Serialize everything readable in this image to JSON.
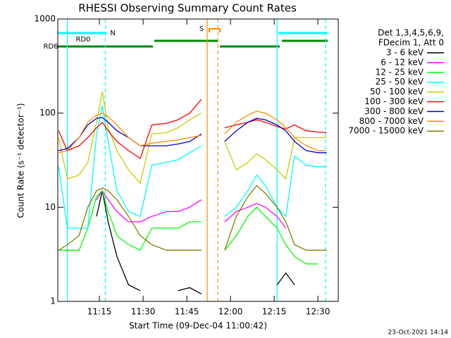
{
  "chart_data": {
    "type": "line",
    "title": "RHESSI Observing Summary Count Rates",
    "x_label": "Start Time (09-Dec-04 11:00:42)",
    "y_label": "Count Rate (s⁻¹ detector⁻¹)",
    "legend_header": [
      "Det 1,3,4,5,6,9,",
      "FDecim 1, Att 0"
    ],
    "timestamp": "23-Oct-2021 14:14",
    "log_y": true,
    "xlim": [
      "11:00:42",
      "12:37:00"
    ],
    "xticks": [
      "11:15",
      "11:30",
      "11:45",
      "12:00",
      "12:15",
      "12:30"
    ],
    "ylim": [
      1,
      1000
    ],
    "yticks": [
      1,
      10,
      100,
      1000
    ],
    "x": [
      "11:01",
      "11:04",
      "11:08",
      "11:11",
      "11:14",
      "11:16",
      "11:18",
      "11:21",
      "11:25",
      "11:29",
      "11:33",
      "11:38",
      "11:42",
      "11:46",
      "11:50",
      "11:54",
      "11:58",
      "12:02",
      "12:06",
      "12:09",
      "12:12",
      "12:16",
      "12:19",
      "12:22",
      "12:26",
      "12:30",
      "12:33"
    ],
    "series": [
      {
        "name": "3 - 6 keV",
        "color": "#000000",
        "values": [
          null,
          null,
          null,
          null,
          8,
          15,
          7,
          3,
          1.5,
          1.3,
          null,
          null,
          1.3,
          1.4,
          1.2,
          null,
          null,
          null,
          null,
          null,
          null,
          1.5,
          2,
          1.5,
          null,
          null,
          null
        ]
      },
      {
        "name": "6 - 12 keV",
        "color": "#ff00ff",
        "values": [
          null,
          null,
          null,
          null,
          12,
          15,
          12,
          9,
          7,
          7,
          8,
          9,
          9,
          10,
          12,
          null,
          7,
          9,
          10,
          11,
          10,
          8,
          6,
          null,
          null,
          null,
          null
        ]
      },
      {
        "name": "12 - 25 keV",
        "color": "#00ff00",
        "values": [
          3.5,
          3.5,
          3.5,
          6,
          13,
          15,
          9,
          5,
          4,
          3.5,
          6,
          6,
          6,
          7,
          7,
          null,
          3.5,
          5,
          8,
          10,
          8,
          6,
          4,
          3,
          2.5,
          2.5,
          null
        ]
      },
      {
        "name": "25 - 50 keV",
        "color": "#00ffff",
        "values": [
          27,
          6,
          6,
          6,
          60,
          120,
          50,
          15,
          9,
          8,
          28,
          30,
          32,
          38,
          45,
          null,
          8,
          10,
          15,
          22,
          17,
          10,
          8,
          35,
          28,
          27,
          27
        ]
      },
      {
        "name": "50 - 100 keV",
        "color": "#cccc00",
        "values": [
          55,
          20,
          22,
          30,
          80,
          170,
          70,
          40,
          25,
          18,
          60,
          62,
          70,
          85,
          100,
          null,
          50,
          25,
          30,
          37,
          32,
          25,
          20,
          55,
          55,
          55,
          55
        ]
      },
      {
        "name": "100 - 300 keV",
        "color": "#ff0000",
        "values": [
          65,
          40,
          45,
          55,
          70,
          80,
          65,
          50,
          40,
          33,
          75,
          78,
          85,
          100,
          140,
          null,
          70,
          75,
          80,
          85,
          80,
          72,
          68,
          75,
          65,
          63,
          62
        ]
      },
      {
        "name": "300 - 800 keV",
        "color": "#0000cc",
        "values": [
          40,
          42,
          55,
          75,
          88,
          90,
          80,
          65,
          55,
          45,
          45,
          45,
          47,
          50,
          60,
          null,
          50,
          65,
          80,
          88,
          85,
          75,
          65,
          50,
          40,
          38,
          38
        ]
      },
      {
        "name": "800 - 7000 keV",
        "color": "#ff8c00",
        "values": [
          38,
          40,
          55,
          80,
          95,
          100,
          92,
          75,
          55,
          45,
          48,
          50,
          52,
          55,
          58,
          null,
          60,
          80,
          95,
          105,
          100,
          85,
          70,
          55,
          45,
          40,
          40
        ]
      },
      {
        "name": "7000 - 15000 keV",
        "color": "#808000",
        "values": [
          3.5,
          4,
          5,
          10,
          15,
          16,
          15,
          12,
          8,
          5,
          4,
          3.5,
          3.5,
          3.5,
          3.5,
          null,
          3.5,
          8,
          13,
          17,
          14,
          10,
          7,
          4,
          3.5,
          3.5,
          3.5
        ]
      }
    ],
    "vlines": [
      {
        "x": "11:04",
        "color": "#00ffff",
        "dashed": false
      },
      {
        "x": "11:17",
        "color": "#00ffff",
        "dashed": true
      },
      {
        "x": "11:52",
        "color": "#ff8c00",
        "dashed": false
      },
      {
        "x": "11:55:40",
        "color": "#ff8c00",
        "dashed": true
      },
      {
        "x": "12:16",
        "color": "#00ffff",
        "dashed": false
      },
      {
        "x": "12:32:40",
        "color": "#00ffff",
        "dashed": true
      }
    ],
    "annotations": [
      {
        "text": "N",
        "color": "#00ffff"
      },
      {
        "text": "RD0",
        "color": "#008800"
      },
      {
        "text": "RD6",
        "color": "#008800"
      },
      {
        "text": "S",
        "color": "#ff8c00"
      }
    ]
  }
}
